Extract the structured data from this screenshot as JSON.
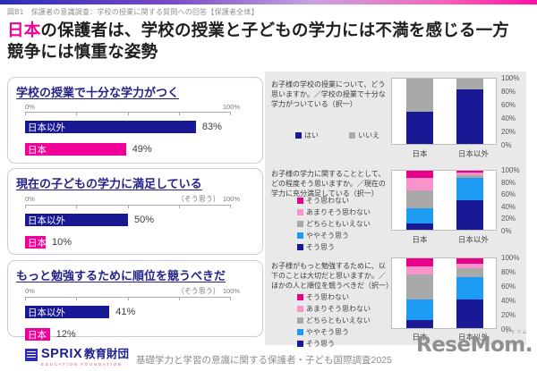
{
  "header": {
    "caption": "図B1　保護者の意識調査：学校の授業に関する質問への回答【保護者全体】"
  },
  "title": {
    "highlight": "日本",
    "line1_rest": "の保護者は、学校の授業と子どもの学力には不満を感じる一方",
    "line2": "競争には慎重な姿勢"
  },
  "colors": {
    "navy": "#191996",
    "pink": "#f00098",
    "magenta": "#e6008a",
    "light_pink": "#f993c9",
    "light_blue": "#1e9bf2",
    "gray": "#a9a9a9",
    "panel_bg": "#e9e9e9"
  },
  "chart_data": [
    {
      "id": "left1",
      "type": "bar",
      "orientation": "horizontal",
      "title": "学校の授業で十分な学力がつく",
      "note": "",
      "axis_left": "0%",
      "axis_right": "100%",
      "xlim": [
        0,
        100
      ],
      "categories": [
        "日本以外",
        "日本"
      ],
      "values": [
        83,
        49
      ],
      "value_labels": [
        "83%",
        "49%"
      ],
      "colors": [
        "#191996",
        "#f00098"
      ]
    },
    {
      "id": "left2",
      "type": "bar",
      "orientation": "horizontal",
      "title": "現在の子どもの学力に満足している",
      "note": "（そう思う）",
      "axis_left": "0%",
      "axis_right": "100%",
      "xlim": [
        0,
        100
      ],
      "categories": [
        "日本以外",
        "日本"
      ],
      "values": [
        50,
        10
      ],
      "value_labels": [
        "50%",
        "10%"
      ],
      "colors": [
        "#191996",
        "#f00098"
      ]
    },
    {
      "id": "left3",
      "type": "bar",
      "orientation": "horizontal",
      "title": "もっと勉強するために順位を競うべきだ",
      "note": "（そう思う）",
      "axis_left": "0%",
      "axis_right": "100%",
      "xlim": [
        0,
        100
      ],
      "categories": [
        "日本以外",
        "日本"
      ],
      "values": [
        41,
        12
      ],
      "value_labels": [
        "41%",
        "12%"
      ],
      "colors": [
        "#191996",
        "#f00098"
      ]
    },
    {
      "id": "right1",
      "type": "stacked-bar",
      "question": "お子様の学校の授業について、どう思いますか。／学校の授業で十分な学力がついている（択一）",
      "categories": [
        "日本",
        "日本以外"
      ],
      "yticks": [
        "100%",
        "80%",
        "60%",
        "40%",
        "20%",
        "0%"
      ],
      "ylim": [
        0,
        100
      ],
      "legend": [
        {
          "label": "はい",
          "color": "#191996"
        },
        {
          "label": "いいえ",
          "color": "#a9a9a9"
        }
      ],
      "series": [
        {
          "name": "いいえ",
          "color": "#a9a9a9",
          "values": [
            51,
            17
          ]
        },
        {
          "name": "はい",
          "color": "#191996",
          "values": [
            49,
            83
          ]
        }
      ]
    },
    {
      "id": "right2",
      "type": "stacked-bar",
      "question": "お子様の学力に関することとして、どの程度そう思いますか。／現在の学力に充分満足している（択一）",
      "categories": [
        "日本",
        "日本以外"
      ],
      "yticks": [
        "100%",
        "80%",
        "60%",
        "40%",
        "20%",
        "0%"
      ],
      "ylim": [
        0,
        100
      ],
      "legend": [
        {
          "label": "そう思わない",
          "color": "#e6008a"
        },
        {
          "label": "あまりそう思わない",
          "color": "#f993c9"
        },
        {
          "label": "どちらともいえない",
          "color": "#a9a9a9"
        },
        {
          "label": "ややそう思う",
          "color": "#1e9bf2"
        },
        {
          "label": "そう思う",
          "color": "#191996"
        }
      ],
      "series": [
        {
          "name": "そう思わない",
          "color": "#e6008a",
          "values": [
            12,
            3
          ]
        },
        {
          "name": "あまりそう思わない",
          "color": "#f993c9",
          "values": [
            21,
            4
          ]
        },
        {
          "name": "どちらともいえない",
          "color": "#a9a9a9",
          "values": [
            31,
            5
          ]
        },
        {
          "name": "ややそう思う",
          "color": "#1e9bf2",
          "values": [
            26,
            38
          ]
        },
        {
          "name": "そう思う",
          "color": "#191996",
          "values": [
            10,
            50
          ]
        }
      ]
    },
    {
      "id": "right3",
      "type": "stacked-bar",
      "question": "お子様がもっと勉強するために、以下のことは大切だと思いますか。／ほかの人と順位を競うべきだ（択一）",
      "categories": [
        "日本",
        "日本以外"
      ],
      "yticks": [
        "100%",
        "80%",
        "60%",
        "40%",
        "20%",
        "0%"
      ],
      "ylim": [
        0,
        100
      ],
      "legend": [
        {
          "label": "そう思わない",
          "color": "#e6008a"
        },
        {
          "label": "あまりそう思わない",
          "color": "#f993c9"
        },
        {
          "label": "どちらともいえない",
          "color": "#a9a9a9"
        },
        {
          "label": "ややそう思う",
          "color": "#1e9bf2"
        },
        {
          "label": "そう思う",
          "color": "#191996"
        }
      ],
      "series": [
        {
          "name": "そう思わない",
          "color": "#e6008a",
          "values": [
            11,
            8
          ]
        },
        {
          "name": "あまりそう思わない",
          "color": "#f993c9",
          "values": [
            12,
            6
          ]
        },
        {
          "name": "どちらともいえない",
          "color": "#a9a9a9",
          "values": [
            36,
            13
          ]
        },
        {
          "name": "ややそう思う",
          "color": "#1e9bf2",
          "values": [
            29,
            32
          ]
        },
        {
          "name": "そう思う",
          "color": "#191996",
          "values": [
            12,
            41
          ]
        }
      ]
    }
  ],
  "footer": {
    "logo_sprix": "SPRIX",
    "logo_jp": "教育財団",
    "logo_sub": "EDUCATION FOUNDATION",
    "credit": "基礎学力と学習の意識に関する保護者・子ども国際調査2025"
  },
  "watermark": {
    "kana": "リセマム",
    "text": "ReseMom."
  }
}
